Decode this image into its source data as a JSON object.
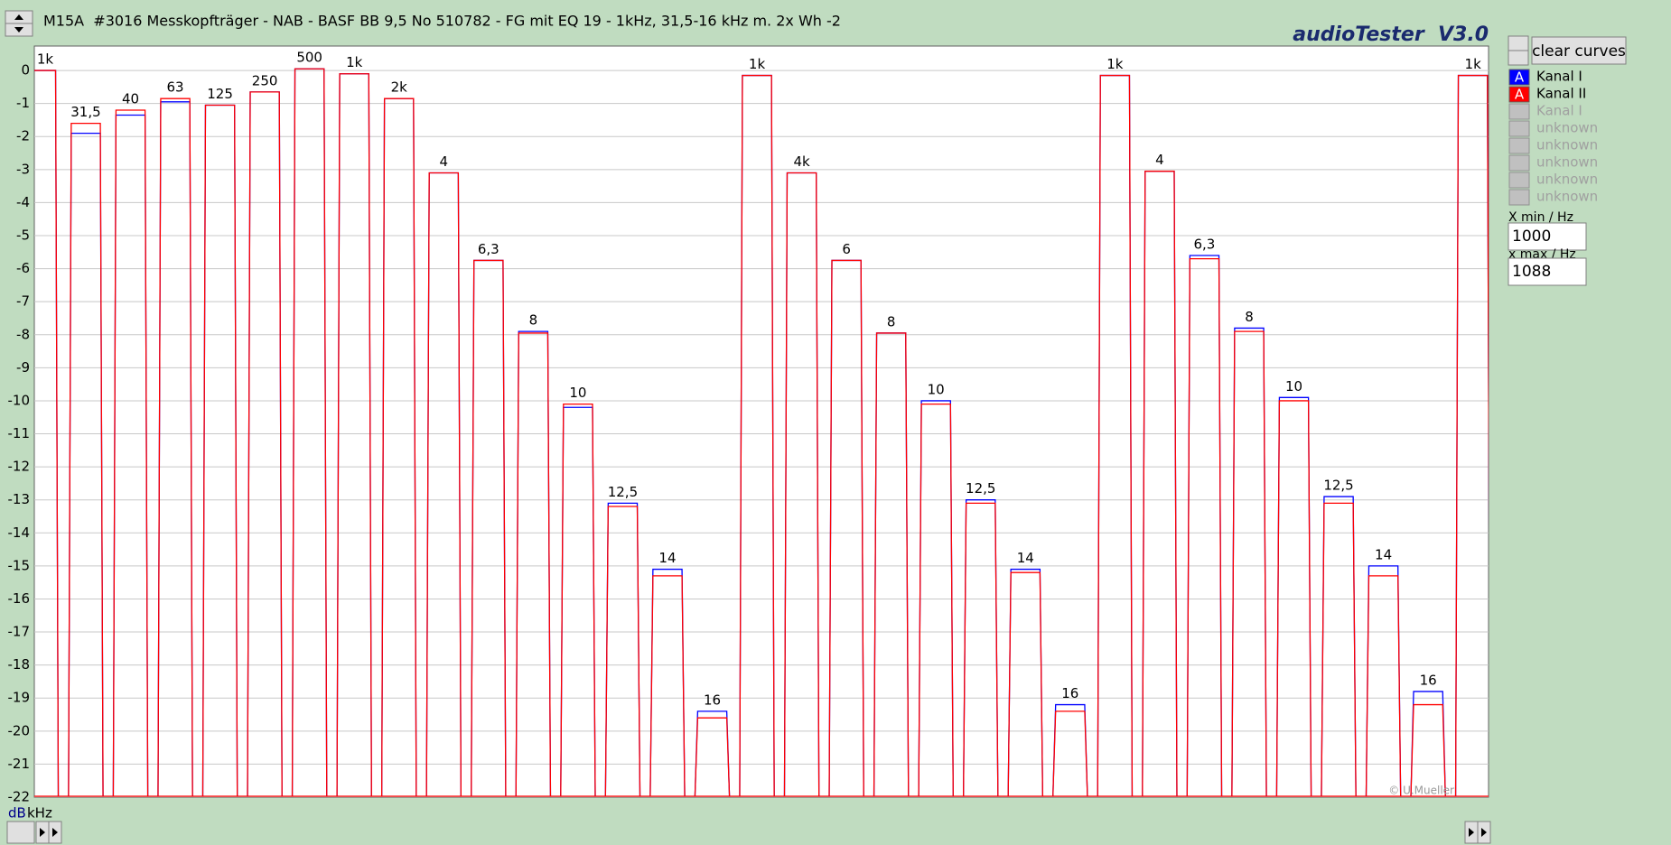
{
  "chart_data": {
    "type": "line",
    "categories": [
      "1k",
      "31,5",
      "40",
      "63",
      "125",
      "250",
      "500",
      "1k",
      "2k",
      "4",
      "6,3",
      "8",
      "10",
      "12,5",
      "14",
      "16",
      "1k",
      "4k",
      "6",
      "8",
      "10",
      "12,5",
      "14",
      "16",
      "1k",
      "4",
      "6,3",
      "8",
      "10",
      "12,5",
      "14",
      "16",
      "1k"
    ],
    "series": [
      {
        "name": "Kanal I",
        "color": "#0000ff",
        "values": [
          0,
          -1.9,
          -1.35,
          -0.95,
          -1.05,
          -0.65,
          0.05,
          -0.1,
          -0.85,
          -3.1,
          -5.75,
          -7.9,
          -10.2,
          -13.1,
          -15.1,
          -19.4,
          -0.15,
          -3.1,
          -5.75,
          -7.95,
          -10.0,
          -13.0,
          -15.1,
          -19.2,
          -0.15,
          -3.05,
          -5.6,
          -7.8,
          -9.9,
          -12.9,
          -15.0,
          -18.8,
          -0.15
        ]
      },
      {
        "name": "Kanal II",
        "color": "#ff0000",
        "values": [
          0,
          -1.6,
          -1.2,
          -0.85,
          -1.05,
          -0.65,
          0.05,
          -0.1,
          -0.85,
          -3.1,
          -5.75,
          -7.95,
          -10.1,
          -13.2,
          -15.3,
          -19.6,
          -0.15,
          -3.1,
          -5.75,
          -7.95,
          -10.1,
          -13.1,
          -15.2,
          -19.4,
          -0.15,
          -3.05,
          -5.7,
          -7.9,
          -10.0,
          -13.1,
          -15.3,
          -19.2,
          -0.15
        ]
      }
    ],
    "ylim": [
      -22,
      0.74
    ],
    "yticks": [
      0,
      -1,
      -2,
      -3,
      -4,
      -5,
      -6,
      -7,
      -8,
      -9,
      -10,
      -11,
      -12,
      -13,
      -14,
      -15,
      -16,
      -17,
      -18,
      -19,
      -20,
      -21,
      -22
    ],
    "grid": true
  },
  "ui": {
    "title": "M15A  #3016 Messkopfträger - NAB - BASF BB 9,5 No 510782 - FG mit EQ 19 - 1kHz, 31,5-16 kHz m. 2x Wh -2",
    "app_name": "audioTester  V3.0",
    "clear_button": "clear curves",
    "legend_icon": "A",
    "inactive_channels": [
      "Kanal I",
      "unknown",
      "unknown",
      "unknown",
      "unknown",
      "unknown"
    ],
    "x_min_label": "X min / Hz",
    "x_min_value": 1000,
    "x_max_label": "x max / Hz",
    "x_max_value": 1088,
    "copyright": "© U.Mueller",
    "y_unit": "dB",
    "x_unit": "kHz"
  }
}
